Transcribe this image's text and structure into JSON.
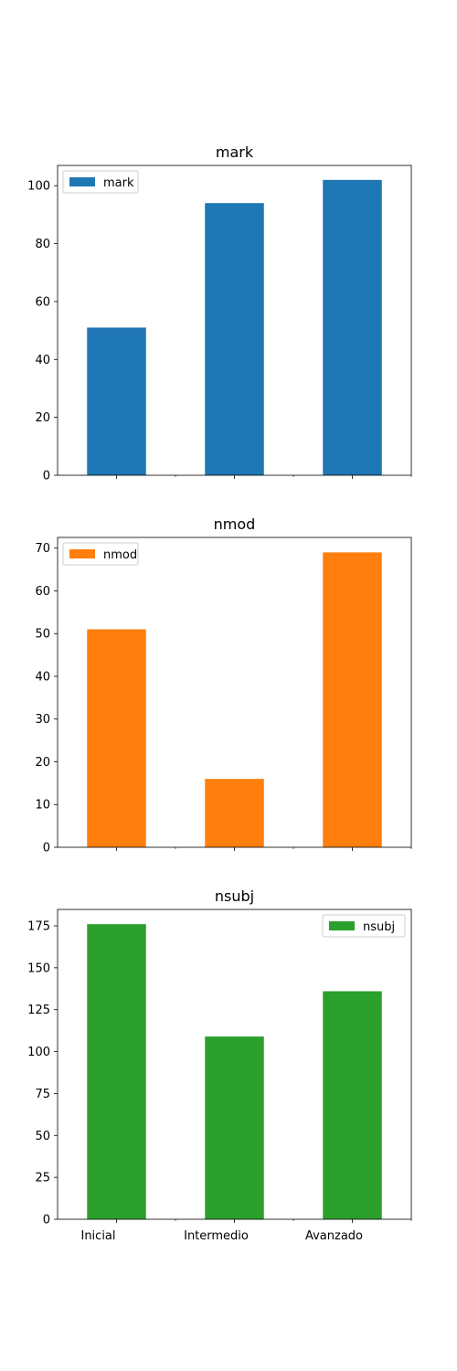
{
  "chart_data": [
    {
      "type": "bar",
      "title": "mark",
      "categories": [
        "Inicial",
        "Intermedio",
        "Avanzado"
      ],
      "series": [
        {
          "name": "mark",
          "values": [
            51,
            94,
            102
          ]
        }
      ],
      "color": "#1f77b4",
      "ylim": [
        0,
        107
      ],
      "yticks": [
        0,
        20,
        40,
        60,
        80,
        100
      ],
      "show_xtick_labels": false,
      "legend": "top-left",
      "grid": false
    },
    {
      "type": "bar",
      "title": "nmod",
      "categories": [
        "Inicial",
        "Intermedio",
        "Avanzado"
      ],
      "series": [
        {
          "name": "nmod",
          "values": [
            51,
            16,
            69
          ]
        }
      ],
      "color": "#ff7f0e",
      "ylim": [
        0,
        72.5
      ],
      "yticks": [
        0,
        10,
        20,
        30,
        40,
        50,
        60,
        70
      ],
      "show_xtick_labels": false,
      "legend": "top-left",
      "grid": false
    },
    {
      "type": "bar",
      "title": "nsubj",
      "categories": [
        "Inicial",
        "Intermedio",
        "Avanzado"
      ],
      "series": [
        {
          "name": "nsubj",
          "values": [
            176,
            109,
            136
          ]
        }
      ],
      "color": "#2ca02c",
      "ylim": [
        0,
        184.8
      ],
      "yticks": [
        0,
        25,
        50,
        75,
        100,
        125,
        150,
        175
      ],
      "show_xtick_labels": true,
      "legend": "top-right",
      "grid": false
    }
  ]
}
